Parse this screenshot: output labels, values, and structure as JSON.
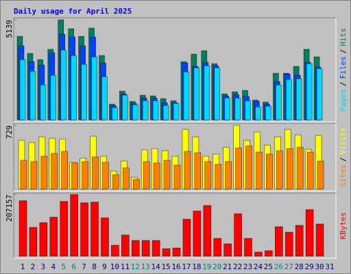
{
  "chart_data": [
    {
      "type": "bar",
      "title": "Daily usage for April 2025",
      "ylim": [
        0,
        5139
      ],
      "yticks": [
        5139
      ],
      "legend_separator": "/",
      "series": [
        {
          "name": "Hits",
          "color": "#008060",
          "values": [
            4294,
            3414,
            3098,
            3626,
            5139,
            4682,
            4294,
            4717,
            3309,
            810,
            1478,
            950,
            1267,
            1232,
            1091,
            986,
            2992,
            3379,
            3555,
            2886,
            1338,
            1443,
            1514,
            1021,
            915,
            2394,
            2394,
            2746,
            3626,
            3238,
            0
          ]
        },
        {
          "name": "Files",
          "color": "#0040ff",
          "values": [
            3802,
            2992,
            2816,
            3450,
            4400,
            4259,
            3802,
            4259,
            2922,
            739,
            1338,
            845,
            1126,
            1126,
            880,
            880,
            2922,
            2746,
            2957,
            2781,
            1232,
            1302,
            1197,
            950,
            810,
            1971,
            2358,
            2288,
            2957,
            2710,
            0
          ]
        },
        {
          "name": "Pages",
          "color": "#00d8ff",
          "values": [
            3098,
            2499,
            1795,
            2288,
            3590,
            3309,
            2851,
            3238,
            2218,
            634,
            1267,
            774,
            986,
            986,
            739,
            845,
            2464,
            2675,
            2781,
            2675,
            1126,
            1126,
            986,
            669,
            704,
            1795,
            2077,
            2112,
            2886,
            2640,
            0
          ]
        }
      ]
    },
    {
      "type": "bar",
      "ylim": [
        0,
        729
      ],
      "yticks": [
        729
      ],
      "legend_separator": "/",
      "series": [
        {
          "name": "Visits",
          "color": "#ffff00",
          "values": [
            557,
            533,
            596,
            580,
            572,
            306,
            353,
            604,
            376,
            204,
            321,
            133,
            447,
            463,
            439,
            376,
            682,
            596,
            376,
            400,
            478,
            729,
            557,
            651,
            502,
            596,
            682,
            619,
            455,
            612,
            0
          ]
        },
        {
          "name": "Sites",
          "color": "#ff8000",
          "values": [
            329,
            314,
            376,
            408,
            431,
            298,
            314,
            368,
            306,
            165,
            243,
            110,
            314,
            298,
            329,
            274,
            431,
            416,
            314,
            282,
            314,
            470,
            494,
            423,
            400,
            439,
            463,
            478,
            423,
            321,
            0
          ]
        }
      ]
    },
    {
      "type": "bar",
      "ylim": [
        0,
        207157
      ],
      "yticks": [
        207157
      ],
      "series": [
        {
          "name": "KBytes",
          "color": "#ff0000",
          "values": [
            186462,
            96684,
            112798,
            131214,
            184160,
            207157,
            179556,
            181858,
            128912,
            36832,
            71362,
            52946,
            52946,
            52946,
            25322,
            27624,
            124308,
            151932,
            170348,
            59852,
            41436,
            142724,
            59852,
            13812,
            18416,
            98986,
            80570,
            103590,
            156536,
            108194,
            0
          ]
        }
      ],
      "categories": [
        "1",
        "2",
        "3",
        "4",
        "5",
        "6",
        "7",
        "8",
        "9",
        "10",
        "11",
        "12",
        "13",
        "14",
        "15",
        "16",
        "17",
        "18",
        "19",
        "20",
        "21",
        "22",
        "23",
        "24",
        "25",
        "26",
        "27",
        "28",
        "29",
        "30",
        "31"
      ],
      "category_colors": [
        "#000080",
        "#000080",
        "#000080",
        "#000080",
        "#008080",
        "#008080",
        "#000080",
        "#000080",
        "#000080",
        "#000080",
        "#000080",
        "#008080",
        "#008080",
        "#000080",
        "#000080",
        "#000080",
        "#000080",
        "#000080",
        "#008080",
        "#008080",
        "#000080",
        "#000080",
        "#000080",
        "#000080",
        "#000080",
        "#008080",
        "#008080",
        "#000080",
        "#000080",
        "#000080",
        "#000080"
      ]
    }
  ]
}
